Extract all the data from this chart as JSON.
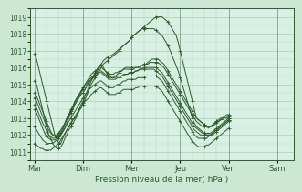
{
  "xlabel": "Pression niveau de la mer( hPa )",
  "bg_color": "#cce8d4",
  "plot_bg_color": "#d8efe4",
  "line_color": "#2d5a2d",
  "grid_color": "#9dc9a8",
  "minor_grid_color": "#b8d9c0",
  "ylim": [
    1010.5,
    1019.5
  ],
  "y_ticks": [
    1011,
    1012,
    1013,
    1014,
    1015,
    1016,
    1017,
    1018,
    1019
  ],
  "days": [
    "Mar",
    "Dim",
    "Mer",
    "Jeu",
    "Ven",
    "Sam"
  ],
  "day_positions": [
    0,
    24,
    48,
    72,
    96,
    120
  ],
  "xlim": [
    -2,
    128
  ],
  "lines": [
    [
      1016.8,
      1016.5,
      1016.0,
      1015.5,
      1015.0,
      1014.5,
      1014.0,
      1013.5,
      1013.0,
      1012.5,
      1012.0,
      1011.8,
      1011.5,
      1011.5,
      1011.8,
      1012.0,
      1012.3,
      1012.5,
      1012.7,
      1012.9,
      1013.0,
      1013.2,
      1013.5,
      1013.8,
      1014.0,
      1014.3,
      1014.6,
      1014.9,
      1015.2,
      1015.4,
      1015.6,
      1015.8,
      1016.0,
      1016.2,
      1016.4,
      1016.5,
      1016.6,
      1016.7,
      1016.7,
      1016.8,
      1016.9,
      1017.0,
      1017.1,
      1017.2,
      1017.3,
      1017.4,
      1017.5,
      1017.6,
      1017.8,
      1017.9,
      1018.0,
      1018.1,
      1018.2,
      1018.3,
      1018.4,
      1018.5,
      1018.6,
      1018.7,
      1018.8,
      1018.9,
      1019.0,
      1019.0,
      1019.0,
      1019.0,
      1018.9,
      1018.8,
      1018.7,
      1018.5,
      1018.3,
      1018.1,
      1017.9,
      1017.5,
      1017.0,
      1016.5,
      1016.0,
      1015.5,
      1015.0,
      1014.5,
      1014.0,
      1013.5,
      1013.0,
      1012.9,
      1012.8,
      1012.7,
      1012.6,
      1012.5,
      1012.4,
      1012.5,
      1012.6,
      1012.7,
      1012.8,
      1012.8,
      1012.9,
      1012.9,
      1013.0,
      1013.0,
      1013.0
    ],
    [
      1015.2,
      1015.0,
      1014.5,
      1014.0,
      1013.5,
      1013.0,
      1012.5,
      1012.0,
      1011.8,
      1011.5,
      1011.3,
      1011.2,
      1011.2,
      1011.3,
      1011.5,
      1011.8,
      1012.0,
      1012.3,
      1012.5,
      1012.7,
      1012.9,
      1013.1,
      1013.4,
      1013.6,
      1013.9,
      1014.1,
      1014.4,
      1014.7,
      1015.0,
      1015.2,
      1015.4,
      1015.6,
      1015.8,
      1016.0,
      1016.2,
      1016.3,
      1016.4,
      1016.5,
      1016.6,
      1016.7,
      1016.8,
      1016.9,
      1017.0,
      1017.2,
      1017.3,
      1017.4,
      1017.5,
      1017.6,
      1017.8,
      1017.9,
      1018.0,
      1018.1,
      1018.2,
      1018.3,
      1018.3,
      1018.3,
      1018.3,
      1018.3,
      1018.3,
      1018.3,
      1018.2,
      1018.1,
      1018.0,
      1017.9,
      1017.7,
      1017.5,
      1017.3,
      1017.0,
      1016.7,
      1016.4,
      1016.1,
      1015.8,
      1015.4,
      1015.0,
      1014.6,
      1014.2,
      1013.8,
      1013.4,
      1013.0,
      1012.7,
      1012.5,
      1012.4,
      1012.3,
      1012.2,
      1012.1,
      1012.0,
      1012.0,
      1012.0,
      1012.0,
      1012.1,
      1012.2,
      1012.3,
      1012.4,
      1012.5,
      1012.6,
      1012.7,
      1012.8
    ],
    [
      1014.5,
      1014.3,
      1014.0,
      1013.7,
      1013.4,
      1013.1,
      1012.8,
      1012.5,
      1012.2,
      1012.0,
      1011.9,
      1011.8,
      1011.9,
      1012.0,
      1012.2,
      1012.4,
      1012.7,
      1013.0,
      1013.3,
      1013.5,
      1013.8,
      1014.0,
      1014.2,
      1014.4,
      1014.5,
      1014.7,
      1014.9,
      1015.1,
      1015.3,
      1015.5,
      1015.7,
      1015.9,
      1016.1,
      1016.2,
      1016.0,
      1015.8,
      1015.6,
      1015.5,
      1015.4,
      1015.4,
      1015.5,
      1015.6,
      1015.7,
      1015.8,
      1015.9,
      1016.0,
      1016.0,
      1016.0,
      1016.0,
      1016.0,
      1016.0,
      1016.0,
      1016.1,
      1016.1,
      1016.2,
      1016.2,
      1016.3,
      1016.4,
      1016.5,
      1016.5,
      1016.5,
      1016.5,
      1016.4,
      1016.3,
      1016.2,
      1016.0,
      1015.8,
      1015.6,
      1015.4,
      1015.2,
      1015.0,
      1014.8,
      1014.6,
      1014.4,
      1014.2,
      1014.0,
      1013.8,
      1013.6,
      1013.4,
      1013.2,
      1013.0,
      1012.9,
      1012.8,
      1012.7,
      1012.6,
      1012.5,
      1012.5,
      1012.5,
      1012.5,
      1012.6,
      1012.7,
      1012.8,
      1012.9,
      1013.0,
      1013.1,
      1013.2,
      1013.2
    ],
    [
      1014.2,
      1014.0,
      1013.7,
      1013.4,
      1013.1,
      1012.8,
      1012.5,
      1012.3,
      1012.1,
      1012.0,
      1012.0,
      1012.0,
      1012.1,
      1012.3,
      1012.5,
      1012.7,
      1013.0,
      1013.2,
      1013.5,
      1013.7,
      1014.0,
      1014.2,
      1014.4,
      1014.6,
      1014.8,
      1015.0,
      1015.2,
      1015.4,
      1015.6,
      1015.7,
      1015.8,
      1015.9,
      1016.0,
      1016.0,
      1015.9,
      1015.8,
      1015.7,
      1015.6,
      1015.6,
      1015.6,
      1015.7,
      1015.7,
      1015.8,
      1015.8,
      1015.9,
      1015.9,
      1015.9,
      1015.9,
      1015.9,
      1015.9,
      1016.0,
      1016.0,
      1016.0,
      1016.1,
      1016.1,
      1016.2,
      1016.2,
      1016.3,
      1016.3,
      1016.3,
      1016.3,
      1016.3,
      1016.2,
      1016.1,
      1016.0,
      1015.8,
      1015.6,
      1015.4,
      1015.2,
      1015.0,
      1014.8,
      1014.6,
      1014.4,
      1014.2,
      1014.0,
      1013.8,
      1013.6,
      1013.4,
      1013.2,
      1013.0,
      1012.8,
      1012.7,
      1012.6,
      1012.5,
      1012.5,
      1012.5,
      1012.5,
      1012.5,
      1012.6,
      1012.7,
      1012.8,
      1012.9,
      1013.0,
      1013.0,
      1013.1,
      1013.1,
      1013.1
    ],
    [
      1013.8,
      1013.6,
      1013.3,
      1013.0,
      1012.7,
      1012.5,
      1012.2,
      1012.0,
      1011.9,
      1011.8,
      1011.8,
      1011.9,
      1012.0,
      1012.2,
      1012.4,
      1012.7,
      1013.0,
      1013.2,
      1013.5,
      1013.7,
      1014.0,
      1014.2,
      1014.4,
      1014.6,
      1014.8,
      1015.0,
      1015.1,
      1015.3,
      1015.4,
      1015.5,
      1015.6,
      1015.7,
      1015.8,
      1015.8,
      1015.7,
      1015.6,
      1015.5,
      1015.4,
      1015.4,
      1015.4,
      1015.4,
      1015.5,
      1015.5,
      1015.5,
      1015.6,
      1015.6,
      1015.6,
      1015.7,
      1015.7,
      1015.7,
      1015.8,
      1015.8,
      1015.9,
      1015.9,
      1016.0,
      1016.0,
      1016.0,
      1016.0,
      1016.0,
      1016.0,
      1016.0,
      1015.9,
      1015.8,
      1015.7,
      1015.5,
      1015.3,
      1015.1,
      1014.9,
      1014.7,
      1014.5,
      1014.3,
      1014.1,
      1013.9,
      1013.7,
      1013.5,
      1013.3,
      1013.1,
      1012.9,
      1012.7,
      1012.5,
      1012.4,
      1012.3,
      1012.2,
      1012.1,
      1012.1,
      1012.1,
      1012.1,
      1012.1,
      1012.2,
      1012.3,
      1012.4,
      1012.5,
      1012.6,
      1012.7,
      1012.8,
      1012.9,
      1013.0
    ],
    [
      1013.5,
      1013.3,
      1013.0,
      1012.7,
      1012.4,
      1012.1,
      1011.9,
      1011.8,
      1011.7,
      1011.7,
      1011.7,
      1011.8,
      1011.9,
      1012.1,
      1012.3,
      1012.6,
      1012.9,
      1013.1,
      1013.4,
      1013.6,
      1013.9,
      1014.1,
      1014.3,
      1014.5,
      1014.7,
      1014.9,
      1015.0,
      1015.2,
      1015.3,
      1015.4,
      1015.5,
      1015.6,
      1015.7,
      1015.7,
      1015.6,
      1015.5,
      1015.4,
      1015.3,
      1015.3,
      1015.3,
      1015.3,
      1015.4,
      1015.4,
      1015.5,
      1015.5,
      1015.6,
      1015.6,
      1015.7,
      1015.7,
      1015.7,
      1015.8,
      1015.8,
      1015.9,
      1015.9,
      1015.9,
      1015.9,
      1015.9,
      1015.9,
      1015.9,
      1015.9,
      1015.8,
      1015.7,
      1015.6,
      1015.5,
      1015.3,
      1015.1,
      1014.9,
      1014.7,
      1014.5,
      1014.3,
      1014.1,
      1013.9,
      1013.7,
      1013.5,
      1013.3,
      1013.1,
      1012.9,
      1012.7,
      1012.5,
      1012.3,
      1012.2,
      1012.1,
      1012.0,
      1012.0,
      1012.0,
      1012.0,
      1012.0,
      1012.0,
      1012.1,
      1012.2,
      1012.3,
      1012.4,
      1012.5,
      1012.6,
      1012.7,
      1012.8,
      1012.9
    ],
    [
      1012.5,
      1012.3,
      1012.1,
      1011.9,
      1011.7,
      1011.6,
      1011.5,
      1011.5,
      1011.5,
      1011.5,
      1011.6,
      1011.7,
      1011.8,
      1012.0,
      1012.2,
      1012.4,
      1012.6,
      1012.8,
      1013.0,
      1013.2,
      1013.4,
      1013.6,
      1013.8,
      1014.0,
      1014.2,
      1014.4,
      1014.5,
      1014.7,
      1014.8,
      1014.9,
      1015.0,
      1015.1,
      1015.2,
      1015.2,
      1015.1,
      1015.0,
      1014.9,
      1014.8,
      1014.8,
      1014.8,
      1014.9,
      1015.0,
      1015.0,
      1015.1,
      1015.2,
      1015.2,
      1015.3,
      1015.3,
      1015.3,
      1015.3,
      1015.3,
      1015.4,
      1015.4,
      1015.4,
      1015.4,
      1015.5,
      1015.5,
      1015.5,
      1015.5,
      1015.5,
      1015.5,
      1015.4,
      1015.3,
      1015.2,
      1015.0,
      1014.8,
      1014.6,
      1014.4,
      1014.2,
      1014.0,
      1013.8,
      1013.6,
      1013.4,
      1013.2,
      1013.0,
      1012.8,
      1012.6,
      1012.4,
      1012.2,
      1012.0,
      1011.9,
      1011.8,
      1011.8,
      1011.8,
      1011.8,
      1011.8,
      1011.9,
      1012.0,
      1012.1,
      1012.2,
      1012.3,
      1012.4,
      1012.5,
      1012.6,
      1012.7,
      1012.8,
      1012.9
    ],
    [
      1011.5,
      1011.4,
      1011.3,
      1011.2,
      1011.2,
      1011.1,
      1011.1,
      1011.1,
      1011.1,
      1011.2,
      1011.3,
      1011.4,
      1011.5,
      1011.7,
      1011.9,
      1012.1,
      1012.3,
      1012.5,
      1012.7,
      1012.9,
      1013.1,
      1013.3,
      1013.5,
      1013.6,
      1013.8,
      1014.0,
      1014.1,
      1014.2,
      1014.4,
      1014.5,
      1014.6,
      1014.7,
      1014.8,
      1014.8,
      1014.7,
      1014.6,
      1014.5,
      1014.4,
      1014.4,
      1014.4,
      1014.4,
      1014.5,
      1014.5,
      1014.6,
      1014.7,
      1014.7,
      1014.7,
      1014.7,
      1014.7,
      1014.7,
      1014.8,
      1014.8,
      1014.9,
      1014.9,
      1014.9,
      1014.9,
      1014.9,
      1014.9,
      1014.9,
      1014.9,
      1014.9,
      1014.8,
      1014.7,
      1014.6,
      1014.4,
      1014.2,
      1014.0,
      1013.8,
      1013.6,
      1013.4,
      1013.2,
      1013.0,
      1012.8,
      1012.6,
      1012.4,
      1012.2,
      1012.0,
      1011.8,
      1011.6,
      1011.5,
      1011.4,
      1011.3,
      1011.3,
      1011.3,
      1011.3,
      1011.4,
      1011.4,
      1011.5,
      1011.6,
      1011.7,
      1011.8,
      1011.9,
      1012.0,
      1012.1,
      1012.2,
      1012.3,
      1012.4
    ]
  ],
  "marker_every": 6
}
